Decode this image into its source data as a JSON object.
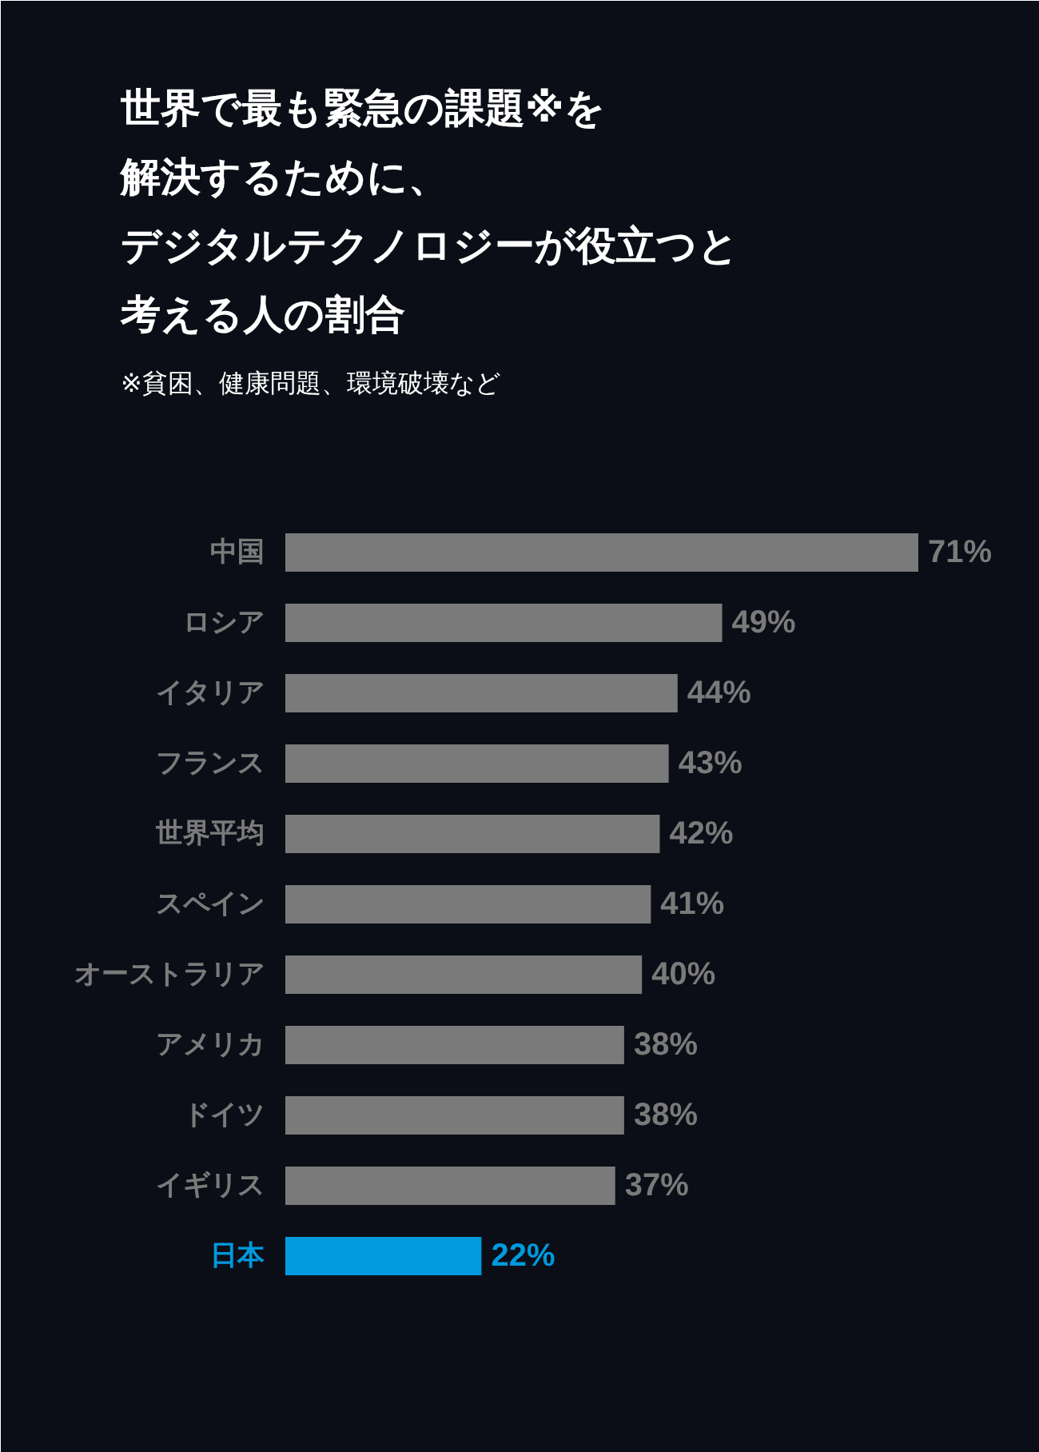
{
  "chart_data": {
    "type": "bar",
    "orientation": "horizontal",
    "title": "世界で最も緊急の課題※を解決するために、デジタルテクノロジーが役立つと考える人の割合",
    "subtitle": "※貧困、健康問題、環境破壊など",
    "categories": [
      "中国",
      "ロシア",
      "イタリア",
      "フランス",
      "世界平均",
      "スペイン",
      "オーストラリア",
      "アメリカ",
      "ドイツ",
      "イギリス",
      "日本"
    ],
    "values": [
      71,
      49,
      44,
      43,
      42,
      41,
      40,
      38,
      38,
      37,
      22
    ],
    "colors": [
      "#7a7a7a",
      "#7a7a7a",
      "#7a7a7a",
      "#7a7a7a",
      "#7a7a7a",
      "#7a7a7a",
      "#7a7a7a",
      "#7a7a7a",
      "#7a7a7a",
      "#7a7a7a",
      "#009ade"
    ],
    "value_labels": [
      "71%",
      "49%",
      "44%",
      "43%",
      "42%",
      "41%",
      "40%",
      "38%",
      "38%",
      "37%",
      "22%"
    ]
  }
}
